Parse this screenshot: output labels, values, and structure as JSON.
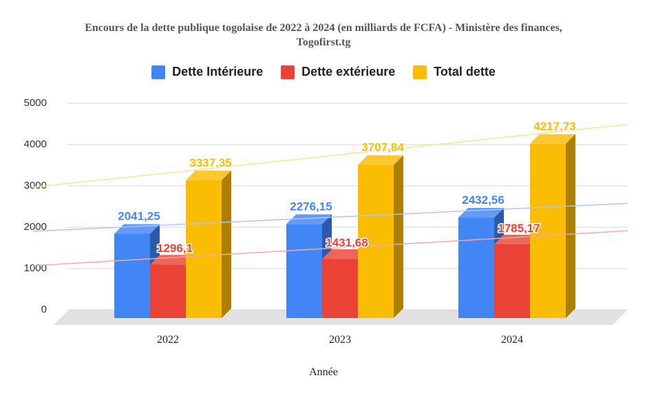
{
  "chart_data": {
    "type": "bar",
    "title_line1": "Encours de la dette publique togolaise de 2022 à 2024 (en milliards de FCFA) - Ministère des finances,",
    "title_line2": "Togofirst.tg",
    "xlabel": "Année",
    "categories": [
      "2022",
      "2023",
      "2024"
    ],
    "series": [
      {
        "name": "Dette Intérieure",
        "color": "#4285f4",
        "values": [
          2041.25,
          2276.15,
          2432.56
        ],
        "labels": [
          "2041,25",
          "2276,15",
          "2432,56"
        ]
      },
      {
        "name": "Dette extérieure",
        "color": "#ea4335",
        "values": [
          1296.1,
          1431.68,
          1785.17
        ],
        "labels": [
          "1296,1",
          "1431,68",
          "1785,17"
        ]
      },
      {
        "name": "Total dette",
        "color": "#fbbc04",
        "values": [
          3337.35,
          3707.84,
          4217.73
        ],
        "labels": [
          "3337,35",
          "3707,84",
          "4217,73"
        ]
      }
    ],
    "yticks": [
      "0",
      "1000",
      "2000",
      "3000",
      "4000",
      "5000"
    ],
    "ylim": [
      0,
      5000
    ],
    "grid": true,
    "legend": "top",
    "trendlines": true,
    "style": "3d-bar"
  }
}
